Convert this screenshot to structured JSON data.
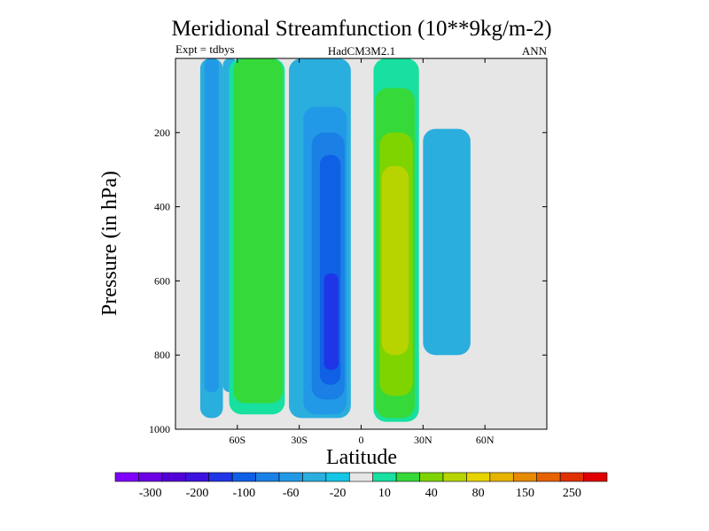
{
  "chart_data": {
    "type": "heatmap",
    "title": "Meridional Streamfunction (10**9kg/m-2)",
    "subtitle_left": "Expt = tdbys",
    "subtitle_center": "HadCM3M2.1",
    "subtitle_right": "ANN",
    "xlabel": "Latitude",
    "ylabel": "Pressure (in hPa)",
    "xlim": [
      -90,
      90
    ],
    "ylim": [
      1000,
      0
    ],
    "x_ticks": [
      {
        "value": -60,
        "label": "60S"
      },
      {
        "value": -30,
        "label": "30S"
      },
      {
        "value": 0,
        "label": "0"
      },
      {
        "value": 30,
        "label": "30N"
      },
      {
        "value": 60,
        "label": "60N"
      }
    ],
    "y_ticks": [
      {
        "value": 200,
        "label": "200"
      },
      {
        "value": 400,
        "label": "400"
      },
      {
        "value": 600,
        "label": "600"
      },
      {
        "value": 800,
        "label": "800"
      },
      {
        "value": 1000,
        "label": "1000"
      }
    ],
    "background_color": "#e6e6e6",
    "colorbar": {
      "colors": [
        "#7f00ff",
        "#6c00e5",
        "#5200d8",
        "#3d12e0",
        "#1f35e6",
        "#1060e6",
        "#1a80e6",
        "#2299e6",
        "#2aaede",
        "#13c6e6",
        "#e6e6e6",
        "#17e0a0",
        "#35d93a",
        "#7fd400",
        "#b8d400",
        "#e6d400",
        "#e6b400",
        "#e68a00",
        "#e66100",
        "#e03000",
        "#e00000"
      ],
      "tick_labels": [
        "-300",
        "-200",
        "-100",
        "-60",
        "-20",
        "10",
        "40",
        "80",
        "150",
        "250"
      ]
    },
    "regions": [
      {
        "level": -20,
        "lat_start": -78,
        "lat_end": -67,
        "p_top": 0,
        "p_bottom": 970
      },
      {
        "level": -40,
        "lat_start": -76,
        "lat_end": -69,
        "p_top": 0,
        "p_bottom": 900
      },
      {
        "level": -20,
        "lat_start": -67,
        "lat_end": -60,
        "p_top": 0,
        "p_bottom": 900
      },
      {
        "level": 10,
        "lat_start": -64,
        "lat_end": -37,
        "p_top": 0,
        "p_bottom": 960
      },
      {
        "level": 40,
        "lat_start": -62,
        "lat_end": -38,
        "p_top": 0,
        "p_bottom": 930
      },
      {
        "level": -20,
        "lat_start": -35,
        "lat_end": -5,
        "p_top": 0,
        "p_bottom": 970
      },
      {
        "level": -40,
        "lat_start": -28,
        "lat_end": -7,
        "p_top": 130,
        "p_bottom": 960
      },
      {
        "level": -60,
        "lat_start": -24,
        "lat_end": -8,
        "p_top": 200,
        "p_bottom": 920
      },
      {
        "level": -80,
        "lat_start": -20,
        "lat_end": -10,
        "p_top": 260,
        "p_bottom": 880
      },
      {
        "level": -100,
        "lat_start": -18,
        "lat_end": -11,
        "p_top": 580,
        "p_bottom": 840
      },
      {
        "level": 10,
        "lat_start": 6,
        "lat_end": 28,
        "p_top": 0,
        "p_bottom": 980
      },
      {
        "level": 40,
        "lat_start": 7,
        "lat_end": 26,
        "p_top": 80,
        "p_bottom": 970
      },
      {
        "level": 60,
        "lat_start": 9,
        "lat_end": 25,
        "p_top": 200,
        "p_bottom": 910
      },
      {
        "level": 80,
        "lat_start": 10,
        "lat_end": 23,
        "p_top": 290,
        "p_bottom": 800
      },
      {
        "level": -20,
        "lat_start": 30,
        "lat_end": 53,
        "p_top": 190,
        "p_bottom": 800
      }
    ]
  }
}
